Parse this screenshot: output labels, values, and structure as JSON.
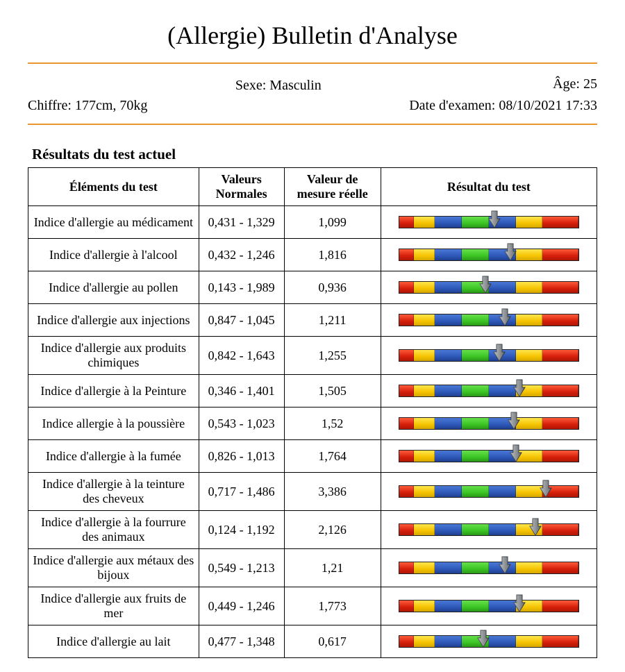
{
  "title": "(Allergie) Bulletin d'Analyse",
  "meta": {
    "chiffre_label": "Chiffre: 177cm, 70kg",
    "sexe_label": "Sexe: Masculin",
    "age_label": "Âge: 25",
    "exam_date_label": "Date d'examen: 08/10/2021 17:33"
  },
  "section_heading": "Résultats du test actuel",
  "columns": {
    "element": "Éléments du test",
    "normal": "Valeurs Normales",
    "measured": "Valeur de mesure réelle",
    "result": "Résultat du test"
  },
  "gauge": {
    "segments": [
      {
        "color": "red",
        "width_pct": 8
      },
      {
        "color": "yellow",
        "width_pct": 12
      },
      {
        "color": "blue",
        "width_pct": 15
      },
      {
        "color": "green",
        "width_pct": 15
      },
      {
        "color": "blue",
        "width_pct": 15
      },
      {
        "color": "yellow",
        "width_pct": 15
      },
      {
        "color": "red",
        "width_pct": 20
      }
    ],
    "border_color": "#222222"
  },
  "rows": [
    {
      "element": "Indice d'allergie au médicament",
      "normal": "0,431 - 1,329",
      "measured": "1,099",
      "pointer_pct": 53
    },
    {
      "element": "Indice d'allergie à l'alcool",
      "normal": "0,432 - 1,246",
      "measured": "1,816",
      "pointer_pct": 62
    },
    {
      "element": "Indice d'allergie au pollen",
      "normal": "0,143 - 1,989",
      "measured": "0,936",
      "pointer_pct": 48
    },
    {
      "element": "Indice d'allergie aux injections",
      "normal": "0,847 - 1,045",
      "measured": "1,211",
      "pointer_pct": 59
    },
    {
      "element": "Indice d'allergie aux produits chimiques",
      "normal": "0,842 - 1,643",
      "measured": "1,255",
      "pointer_pct": 56
    },
    {
      "element": "Indice d'allergie à la Peinture",
      "normal": "0,346 - 1,401",
      "measured": "1,505",
      "pointer_pct": 67
    },
    {
      "element": "Indice allergie à la poussière",
      "normal": "0,543 - 1,023",
      "measured": "1,52",
      "pointer_pct": 64
    },
    {
      "element": "Indice d'allergie à la fumée",
      "normal": "0,826 - 1,013",
      "measured": "1,764",
      "pointer_pct": 65
    },
    {
      "element": "Indice d'allergie à la teinture des cheveux",
      "normal": "0,717 - 1,486",
      "measured": "3,386",
      "pointer_pct": 82
    },
    {
      "element": "Indice d'allergie à la fourrure des animaux",
      "normal": "0,124 - 1,192",
      "measured": "2,126",
      "pointer_pct": 76
    },
    {
      "element": "Indice d'allergie aux métaux des bijoux",
      "normal": "0,549 - 1,213",
      "measured": "1,21",
      "pointer_pct": 59
    },
    {
      "element": "Indice d'allergie aux fruits de mer",
      "normal": "0,449 - 1,246",
      "measured": "1,773",
      "pointer_pct": 67
    },
    {
      "element": "Indice d'allergie au lait",
      "normal": "0,477 - 1,348",
      "measured": "0,617",
      "pointer_pct": 47
    }
  ],
  "colors": {
    "orange_rule": "#e8972e",
    "red": "#d41e0a",
    "yellow": "#f5c300",
    "blue": "#2d58b8",
    "green": "#3bc423",
    "pointer_fill": "#9ca1a6",
    "pointer_stroke": "#3a3f44"
  }
}
